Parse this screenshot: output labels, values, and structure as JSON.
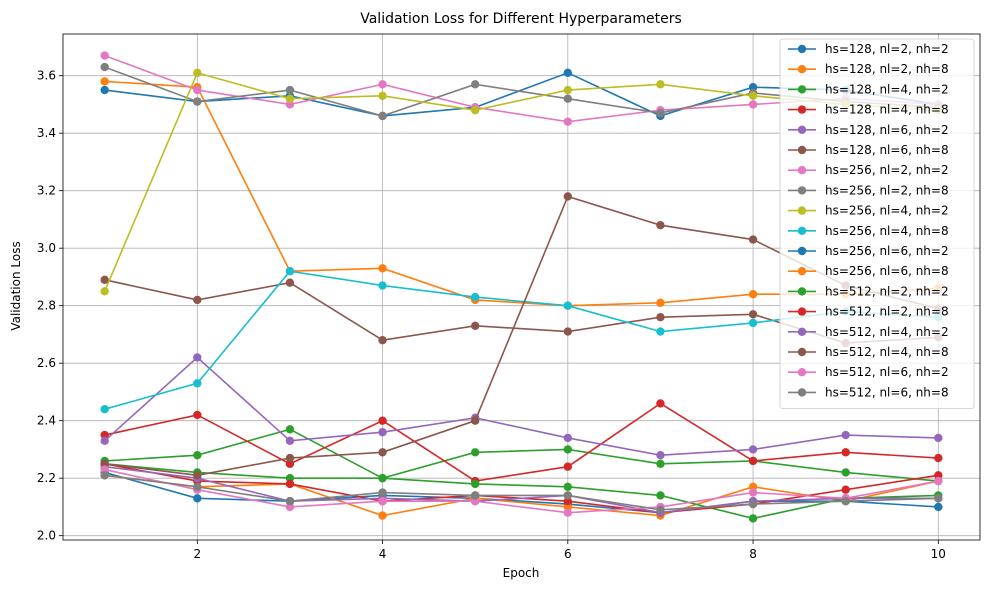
{
  "chart_data": {
    "type": "line",
    "title": "Validation Loss for Different Hyperparameters",
    "xlabel": "Epoch",
    "ylabel": "Validation Loss",
    "x": [
      1,
      2,
      3,
      4,
      5,
      6,
      7,
      8,
      9,
      10
    ],
    "xticks": [
      2,
      4,
      6,
      8,
      10
    ],
    "yticks": [
      2.0,
      2.2,
      2.4,
      2.6,
      2.8,
      3.0,
      3.2,
      3.4,
      3.6
    ],
    "xlim": [
      0.55,
      10.45
    ],
    "ylim": [
      1.985,
      3.745
    ],
    "grid": true,
    "legend_position": "top-right",
    "colors": [
      "#1f77b4",
      "#ff7f0e",
      "#2ca02c",
      "#d62728",
      "#9467bd",
      "#8c564b",
      "#e377c2",
      "#7f7f7f",
      "#bcbd22",
      "#17becf"
    ],
    "series": [
      {
        "name": "hs=128, nl=2, nh=2",
        "values": [
          3.55,
          3.51,
          3.53,
          3.46,
          3.49,
          3.61,
          3.46,
          3.56,
          3.55,
          3.5
        ]
      },
      {
        "name": "hs=128, nl=2, nh=8",
        "values": [
          3.58,
          3.56,
          2.92,
          2.93,
          2.82,
          2.8,
          2.81,
          2.84,
          2.84,
          2.86
        ]
      },
      {
        "name": "hs=128, nl=4, nh=2",
        "values": [
          2.26,
          2.28,
          2.37,
          2.2,
          2.29,
          2.3,
          2.25,
          2.26,
          2.22,
          2.19
        ]
      },
      {
        "name": "hs=128, nl=4, nh=8",
        "values": [
          2.35,
          2.42,
          2.25,
          2.4,
          2.19,
          2.24,
          2.46,
          2.26,
          2.29,
          2.27
        ]
      },
      {
        "name": "hs=128, nl=6, nh=2",
        "values": [
          2.33,
          2.62,
          2.33,
          2.36,
          2.41,
          2.34,
          2.28,
          2.3,
          2.35,
          2.34
        ]
      },
      {
        "name": "hs=128, nl=6, nh=8",
        "values": [
          2.89,
          2.82,
          2.88,
          2.68,
          2.73,
          2.71,
          2.76,
          2.77,
          2.67,
          2.69
        ]
      },
      {
        "name": "hs=256, nl=2, nh=2",
        "values": [
          3.67,
          3.55,
          3.5,
          3.57,
          3.49,
          3.44,
          3.48,
          3.5,
          3.52,
          3.5
        ]
      },
      {
        "name": "hs=256, nl=2, nh=8",
        "values": [
          3.63,
          3.51,
          3.55,
          3.46,
          3.57,
          3.52,
          3.47,
          3.54,
          3.51,
          3.49
        ]
      },
      {
        "name": "hs=256, nl=4, nh=2",
        "values": [
          2.85,
          3.61,
          3.52,
          3.53,
          3.48,
          3.55,
          3.57,
          3.53,
          3.5,
          3.48
        ]
      },
      {
        "name": "hs=256, nl=4, nh=8",
        "values": [
          2.44,
          2.53,
          2.92,
          2.87,
          2.83,
          2.8,
          2.71,
          2.74,
          2.78,
          2.76
        ]
      },
      {
        "name": "hs=256, nl=6, nh=2",
        "values": [
          2.22,
          2.13,
          2.12,
          2.14,
          2.13,
          2.11,
          2.08,
          2.12,
          2.12,
          2.1
        ]
      },
      {
        "name": "hs=256, nl=6, nh=8",
        "values": [
          2.21,
          2.17,
          2.18,
          2.07,
          2.13,
          2.1,
          2.07,
          2.17,
          2.12,
          2.19
        ]
      },
      {
        "name": "hs=512, nl=2, nh=2",
        "values": [
          2.25,
          2.22,
          2.2,
          2.2,
          2.18,
          2.17,
          2.14,
          2.06,
          2.13,
          2.14
        ]
      },
      {
        "name": "hs=512, nl=2, nh=8",
        "values": [
          2.25,
          2.19,
          2.18,
          2.12,
          2.14,
          2.12,
          2.08,
          2.11,
          2.16,
          2.21
        ]
      },
      {
        "name": "hs=512, nl=4, nh=2",
        "values": [
          2.24,
          2.2,
          2.12,
          2.13,
          2.12,
          2.14,
          2.08,
          2.12,
          2.13,
          2.13
        ]
      },
      {
        "name": "hs=512, nl=4, nh=8",
        "values": [
          2.25,
          2.21,
          2.27,
          2.29,
          2.4,
          3.18,
          3.08,
          3.03,
          2.87,
          2.79
        ]
      },
      {
        "name": "hs=512, nl=6, nh=2",
        "values": [
          2.23,
          2.16,
          2.1,
          2.12,
          2.12,
          2.08,
          2.1,
          2.15,
          2.13,
          2.19
        ]
      },
      {
        "name": "hs=512, nl=6, nh=8",
        "values": [
          2.21,
          2.17,
          2.12,
          2.15,
          2.14,
          2.14,
          2.09,
          2.11,
          2.12,
          2.13
        ]
      }
    ]
  }
}
